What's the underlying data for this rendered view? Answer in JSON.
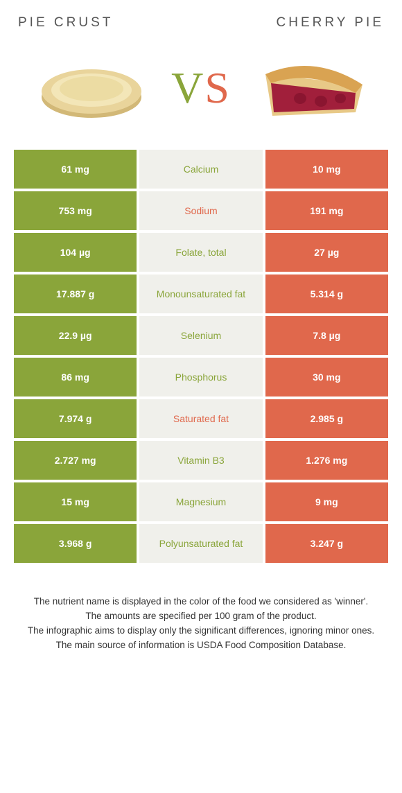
{
  "header": {
    "left_title": "PIE CRUST",
    "right_title": "CHERRY PIE"
  },
  "vs": {
    "v": "V",
    "s": "S"
  },
  "colors": {
    "left_bg": "#8aa53a",
    "right_bg": "#e0684c",
    "mid_bg": "#f0f0eb",
    "page_bg": "#ffffff",
    "winner_left_text": "#8aa53a",
    "winner_right_text": "#e0684c"
  },
  "rows": [
    {
      "left": "61 mg",
      "nutrient": "Calcium",
      "right": "10 mg",
      "winner": "left"
    },
    {
      "left": "753 mg",
      "nutrient": "Sodium",
      "right": "191 mg",
      "winner": "right"
    },
    {
      "left": "104 µg",
      "nutrient": "Folate, total",
      "right": "27 µg",
      "winner": "left"
    },
    {
      "left": "17.887 g",
      "nutrient": "Monounsaturated fat",
      "right": "5.314 g",
      "winner": "left"
    },
    {
      "left": "22.9 µg",
      "nutrient": "Selenium",
      "right": "7.8 µg",
      "winner": "left"
    },
    {
      "left": "86 mg",
      "nutrient": "Phosphorus",
      "right": "30 mg",
      "winner": "left"
    },
    {
      "left": "7.974 g",
      "nutrient": "Saturated fat",
      "right": "2.985 g",
      "winner": "right"
    },
    {
      "left": "2.727 mg",
      "nutrient": "Vitamin B3",
      "right": "1.276 mg",
      "winner": "left"
    },
    {
      "left": "15 mg",
      "nutrient": "Magnesium",
      "right": "9 mg",
      "winner": "left"
    },
    {
      "left": "3.968 g",
      "nutrient": "Polyunsaturated fat",
      "right": "3.247 g",
      "winner": "left"
    }
  ],
  "footer": {
    "line1": "The nutrient name is displayed in the color of the food we considered as 'winner'.",
    "line2": "The amounts are specified per 100 gram of the product.",
    "line3": "The infographic aims to display only the significant differences, ignoring minor ones.",
    "line4": "The main source of information is USDA Food Composition Database."
  }
}
